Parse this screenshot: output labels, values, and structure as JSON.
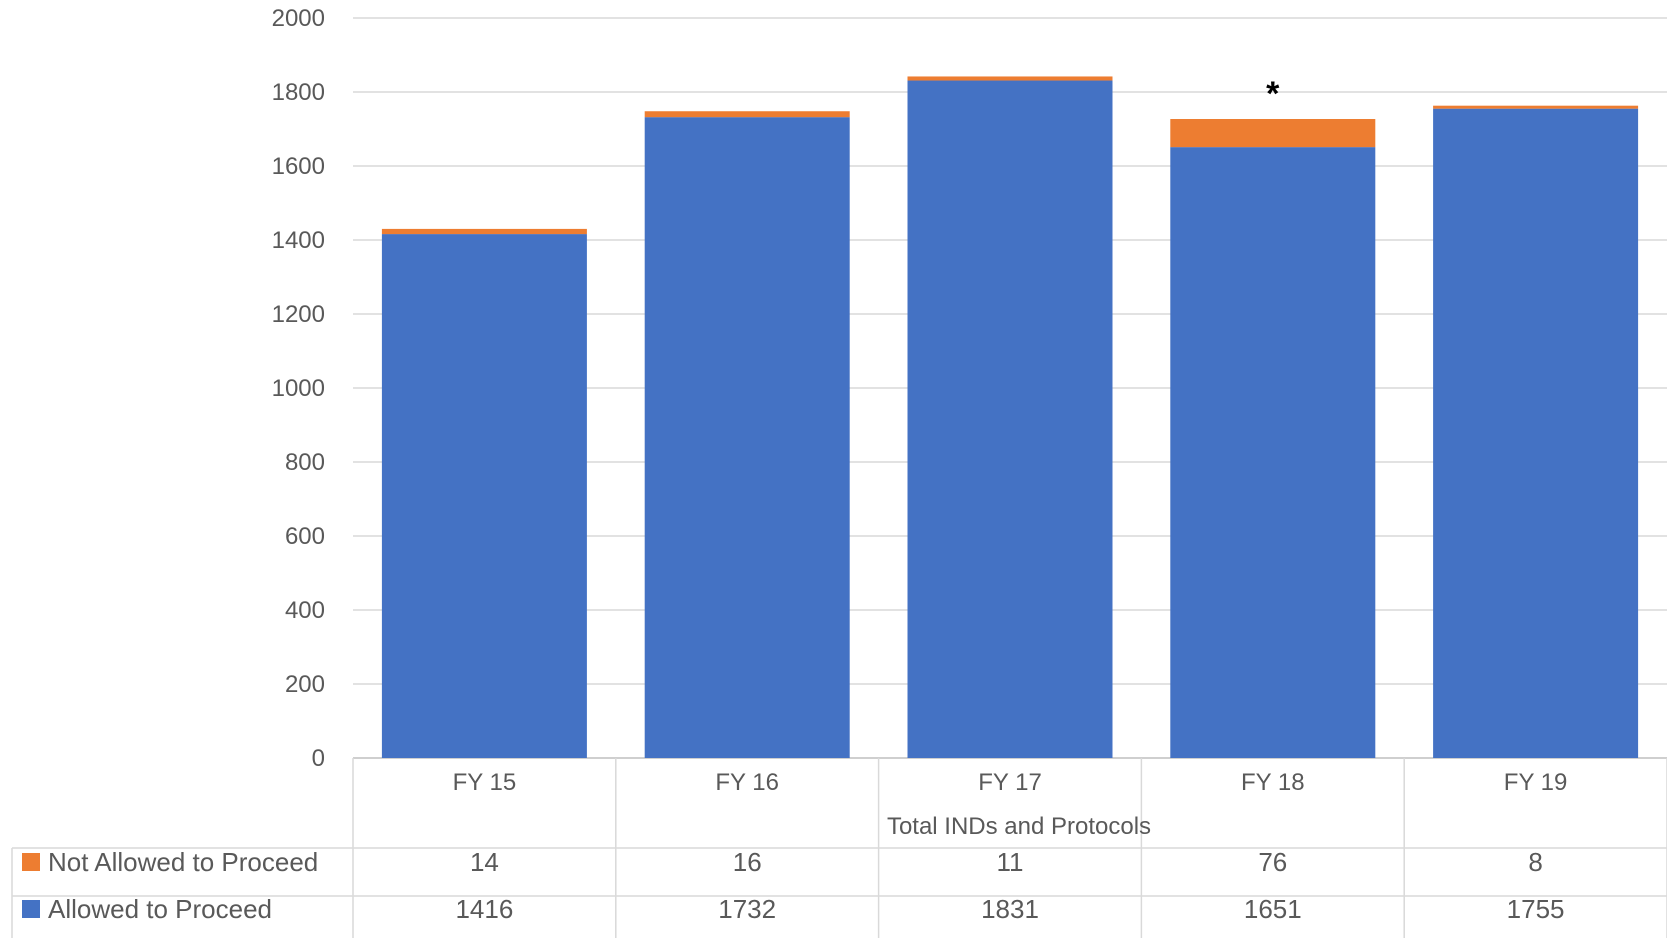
{
  "chart_data": {
    "type": "bar",
    "stacked": true,
    "categories": [
      "FY 15",
      "FY 16",
      "FY 17",
      "FY 18",
      "FY 19"
    ],
    "xlabel": "Total INDs and Protocols",
    "ylim": [
      0,
      2000
    ],
    "yticks": [
      0,
      200,
      400,
      600,
      800,
      1000,
      1200,
      1400,
      1600,
      1800,
      2000
    ],
    "grid": true,
    "legend": "data-table",
    "series": [
      {
        "name": "Allowed to Proceed",
        "color": "#4472C4",
        "values": [
          1416,
          1732,
          1831,
          1651,
          1755
        ]
      },
      {
        "name": "Not Allowed to Proceed",
        "color": "#ED7D31",
        "values": [
          14,
          16,
          11,
          76,
          8
        ]
      }
    ],
    "table_rows": [
      {
        "name": "Not Allowed to Proceed",
        "color": "#ED7D31",
        "values": [
          "14",
          "16",
          "11",
          "76",
          "8"
        ]
      },
      {
        "name": "Allowed to Proceed",
        "color": "#4472C4",
        "values": [
          "1416",
          "1732",
          "1831",
          "1651",
          "1755"
        ]
      }
    ],
    "annotations": [
      {
        "category": "FY 18",
        "text": "*"
      }
    ]
  }
}
